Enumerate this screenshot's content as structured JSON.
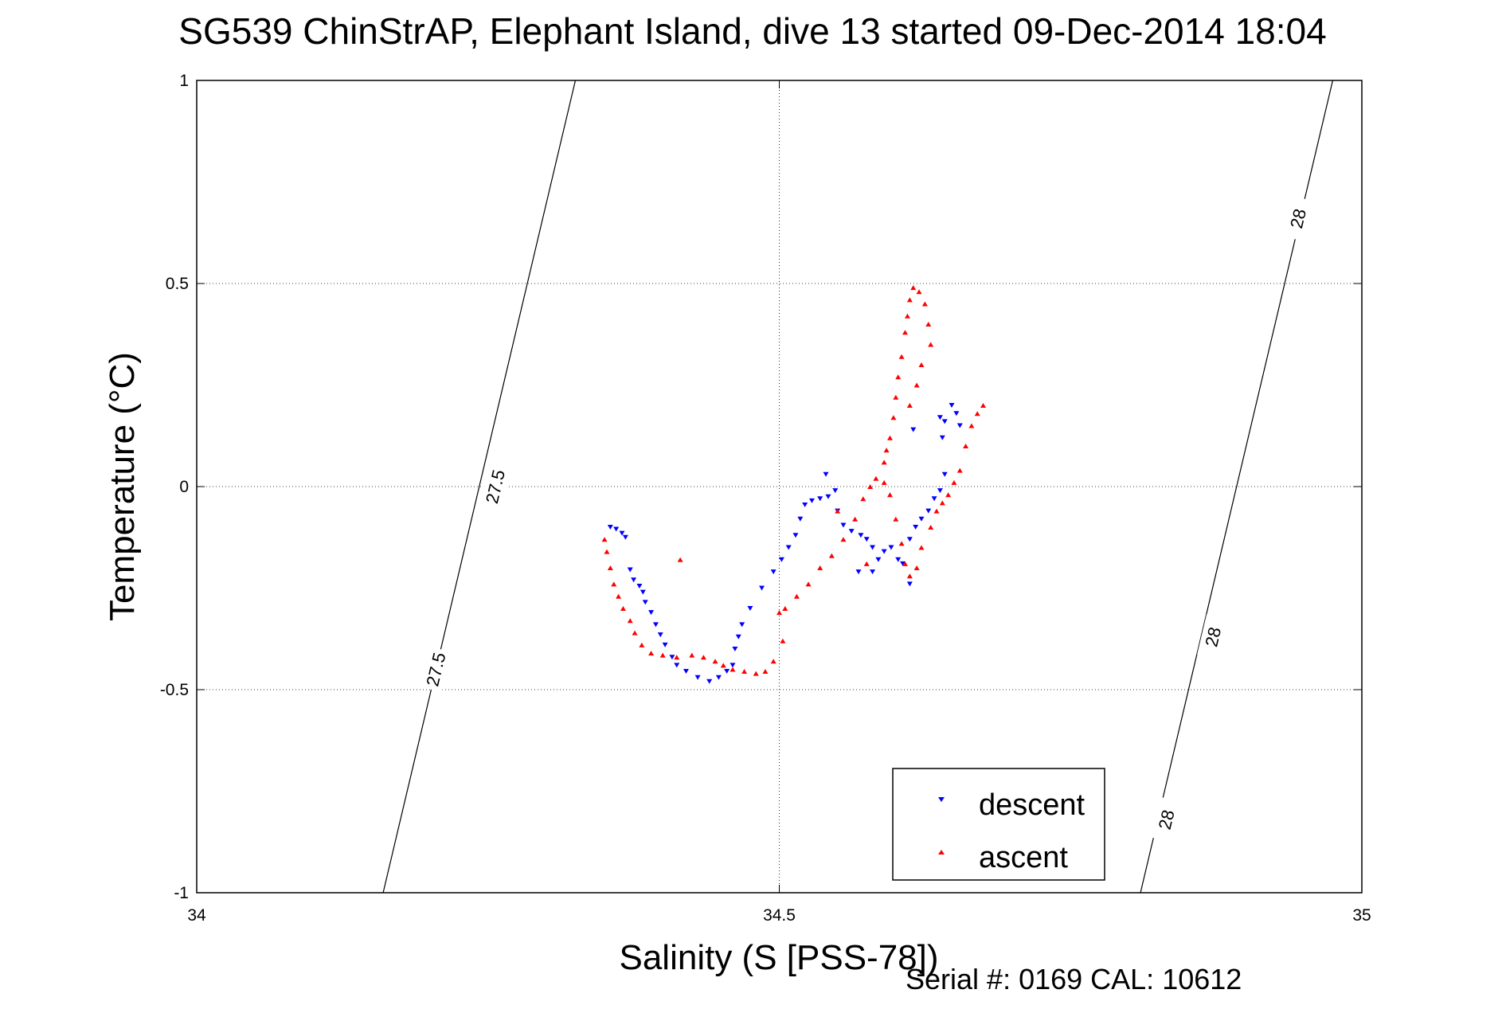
{
  "chart_data": {
    "type": "scatter",
    "title": "SG539 ChinStrAP, Elephant Island, dive 13 started 09-Dec-2014 18:04",
    "xlabel": "Salinity (S [PSS-78])",
    "ylabel": "Temperature (°C)",
    "xlim": [
      34,
      35
    ],
    "ylim": [
      -1,
      1
    ],
    "xticks": [
      34,
      34.5,
      35
    ],
    "xtick_labels": [
      "34",
      "34.5",
      "35"
    ],
    "yticks": [
      -1,
      -0.5,
      0,
      0.5,
      1
    ],
    "ytick_labels": [
      "-1",
      "-0.5",
      "0",
      "0.5",
      "1"
    ],
    "grid": true,
    "legend_position": "bottom-right",
    "footer": "Serial #: 0169 CAL: 10612",
    "series": [
      {
        "name": "descent",
        "color": "#0000ff",
        "marker": "triangle-down",
        "points": [
          [
            34.355,
            -0.1
          ],
          [
            34.36,
            -0.105
          ],
          [
            34.365,
            -0.115
          ],
          [
            34.368,
            -0.125
          ],
          [
            34.372,
            -0.205
          ],
          [
            34.375,
            -0.23
          ],
          [
            34.38,
            -0.245
          ],
          [
            34.383,
            -0.26
          ],
          [
            34.385,
            -0.285
          ],
          [
            34.39,
            -0.31
          ],
          [
            34.394,
            -0.34
          ],
          [
            34.398,
            -0.365
          ],
          [
            34.402,
            -0.39
          ],
          [
            34.408,
            -0.42
          ],
          [
            34.412,
            -0.44
          ],
          [
            34.42,
            -0.455
          ],
          [
            34.43,
            -0.47
          ],
          [
            34.44,
            -0.48
          ],
          [
            34.448,
            -0.47
          ],
          [
            34.455,
            -0.455
          ],
          [
            34.46,
            -0.44
          ],
          [
            34.462,
            -0.4
          ],
          [
            34.465,
            -0.37
          ],
          [
            34.468,
            -0.34
          ],
          [
            34.475,
            -0.3
          ],
          [
            34.485,
            -0.25
          ],
          [
            34.495,
            -0.21
          ],
          [
            34.502,
            -0.18
          ],
          [
            34.508,
            -0.15
          ],
          [
            34.514,
            -0.12
          ],
          [
            34.518,
            -0.08
          ],
          [
            34.522,
            -0.045
          ],
          [
            34.528,
            -0.035
          ],
          [
            34.535,
            -0.03
          ],
          [
            34.542,
            -0.025
          ],
          [
            34.548,
            -0.01
          ],
          [
            34.55,
            -0.06
          ],
          [
            34.555,
            -0.095
          ],
          [
            34.562,
            -0.11
          ],
          [
            34.57,
            -0.12
          ],
          [
            34.575,
            -0.13
          ],
          [
            34.58,
            -0.15
          ],
          [
            34.585,
            -0.18
          ],
          [
            34.59,
            -0.16
          ],
          [
            34.596,
            -0.15
          ],
          [
            34.602,
            -0.18
          ],
          [
            34.606,
            -0.19
          ],
          [
            34.612,
            -0.13
          ],
          [
            34.617,
            -0.1
          ],
          [
            34.622,
            -0.08
          ],
          [
            34.628,
            -0.06
          ],
          [
            34.633,
            -0.03
          ],
          [
            34.638,
            -0.01
          ],
          [
            34.642,
            0.03
          ],
          [
            34.64,
            0.12
          ],
          [
            34.638,
            0.17
          ],
          [
            34.642,
            0.16
          ],
          [
            34.648,
            0.2
          ],
          [
            34.652,
            0.18
          ],
          [
            34.655,
            0.15
          ],
          [
            34.615,
            0.14
          ],
          [
            34.612,
            -0.24
          ],
          [
            34.58,
            -0.21
          ],
          [
            34.568,
            -0.21
          ],
          [
            34.54,
            0.03
          ]
        ]
      },
      {
        "name": "ascent",
        "color": "#ff0000",
        "marker": "triangle-up",
        "points": [
          [
            34.35,
            -0.13
          ],
          [
            34.352,
            -0.16
          ],
          [
            34.355,
            -0.2
          ],
          [
            34.358,
            -0.24
          ],
          [
            34.362,
            -0.27
          ],
          [
            34.366,
            -0.3
          ],
          [
            34.372,
            -0.33
          ],
          [
            34.376,
            -0.36
          ],
          [
            34.382,
            -0.39
          ],
          [
            34.39,
            -0.41
          ],
          [
            34.4,
            -0.415
          ],
          [
            34.412,
            -0.42
          ],
          [
            34.425,
            -0.415
          ],
          [
            34.435,
            -0.42
          ],
          [
            34.445,
            -0.43
          ],
          [
            34.452,
            -0.44
          ],
          [
            34.46,
            -0.45
          ],
          [
            34.47,
            -0.455
          ],
          [
            34.48,
            -0.46
          ],
          [
            34.488,
            -0.455
          ],
          [
            34.495,
            -0.43
          ],
          [
            34.503,
            -0.38
          ],
          [
            34.5,
            -0.31
          ],
          [
            34.505,
            -0.3
          ],
          [
            34.515,
            -0.27
          ],
          [
            34.525,
            -0.24
          ],
          [
            34.535,
            -0.2
          ],
          [
            34.545,
            -0.17
          ],
          [
            34.555,
            -0.13
          ],
          [
            34.565,
            -0.08
          ],
          [
            34.572,
            -0.03
          ],
          [
            34.578,
            0.0
          ],
          [
            34.583,
            0.02
          ],
          [
            34.59,
            0.01
          ],
          [
            34.595,
            -0.02
          ],
          [
            34.6,
            -0.08
          ],
          [
            34.605,
            -0.14
          ],
          [
            34.608,
            -0.19
          ],
          [
            34.612,
            -0.22
          ],
          [
            34.618,
            -0.2
          ],
          [
            34.622,
            -0.15
          ],
          [
            34.63,
            -0.1
          ],
          [
            34.635,
            -0.06
          ],
          [
            34.64,
            -0.04
          ],
          [
            34.645,
            -0.02
          ],
          [
            34.65,
            0.01
          ],
          [
            34.655,
            0.04
          ],
          [
            34.66,
            0.1
          ],
          [
            34.665,
            0.15
          ],
          [
            34.67,
            0.18
          ],
          [
            34.675,
            0.2
          ],
          [
            34.59,
            0.06
          ],
          [
            34.592,
            0.09
          ],
          [
            34.595,
            0.12
          ],
          [
            34.598,
            0.17
          ],
          [
            34.6,
            0.22
          ],
          [
            34.602,
            0.27
          ],
          [
            34.605,
            0.32
          ],
          [
            34.608,
            0.38
          ],
          [
            34.61,
            0.42
          ],
          [
            34.612,
            0.46
          ],
          [
            34.615,
            0.49
          ],
          [
            34.62,
            0.48
          ],
          [
            34.625,
            0.45
          ],
          [
            34.628,
            0.4
          ],
          [
            34.63,
            0.35
          ],
          [
            34.622,
            0.3
          ],
          [
            34.618,
            0.25
          ],
          [
            34.612,
            0.2
          ],
          [
            34.415,
            -0.18
          ],
          [
            34.55,
            -0.06
          ],
          [
            34.575,
            -0.19
          ]
        ]
      }
    ],
    "isopycnals": [
      {
        "label": "27.5",
        "points": [
          [
            34.16,
            -1.0
          ],
          [
            34.325,
            1.0
          ]
        ],
        "label_positions": [
          [
            34.205,
            -0.45
          ],
          [
            34.256,
            0.0
          ]
        ]
      },
      {
        "label": "28",
        "points": [
          [
            34.81,
            -1.0
          ],
          [
            34.975,
            1.0
          ]
        ],
        "label_positions": [
          [
            34.832,
            -0.82
          ],
          [
            34.872,
            -0.37
          ],
          [
            34.945,
            0.66
          ]
        ]
      }
    ]
  }
}
